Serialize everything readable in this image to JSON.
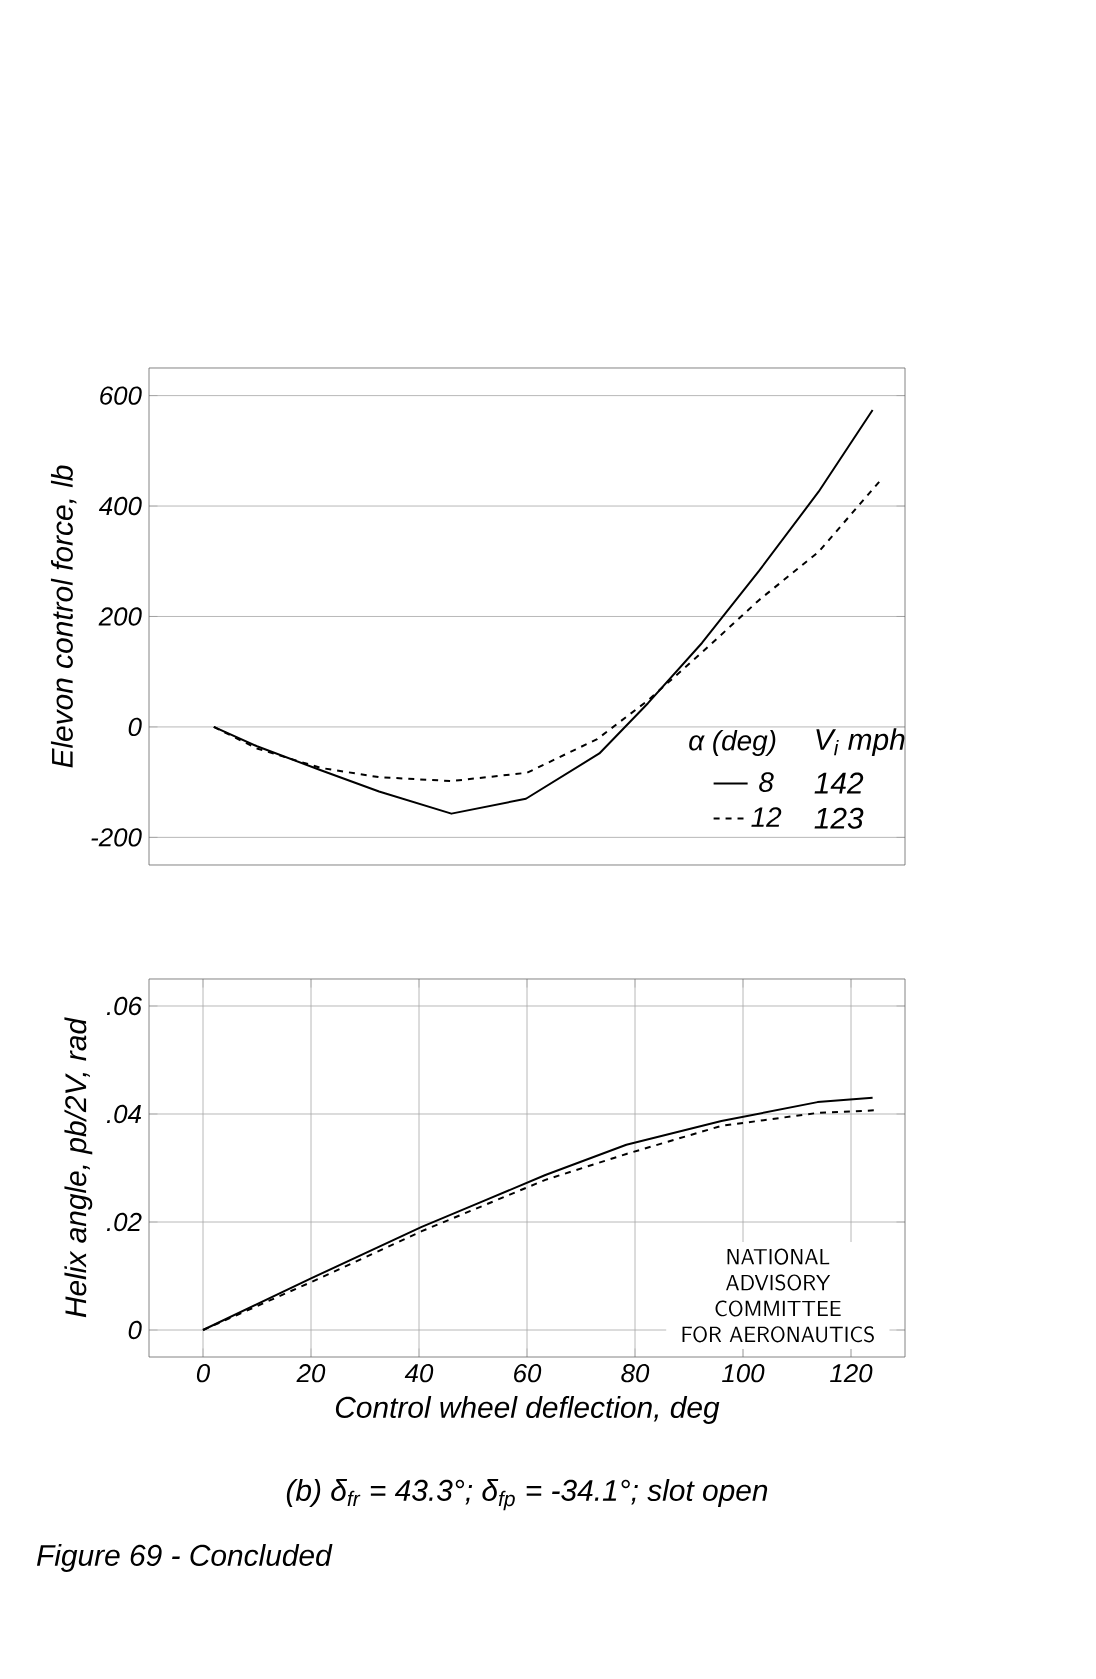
{
  "chart_data": [
    {
      "type": "line",
      "ylabel": "Elevon control force, lb",
      "legend_title": "α (deg)",
      "xlim": [
        -10,
        130
      ],
      "ylim": [
        -250,
        650
      ],
      "yticks": [
        -200,
        0,
        200,
        400,
        600
      ],
      "tick_labels": "y",
      "grid": true,
      "legend": "bottom right",
      "series": [
        {
          "name": "8",
          "color": "#000000",
          "line_style": "solid",
          "x": [
            2,
            10,
            21.7,
            32.6,
            46,
            59.8,
            73.4,
            82.4,
            92.4,
            103,
            114,
            124
          ],
          "values": [
            0,
            -35,
            -78,
            -117,
            -157,
            -130,
            -48,
            43,
            152,
            283,
            426,
            574
          ]
        },
        {
          "name": "12",
          "color": "#000000",
          "line_style": "dashed",
          "x": [
            2,
            10,
            21.7,
            32.6,
            46,
            60,
            73,
            82.4,
            92.4,
            103,
            114,
            125.4
          ],
          "values": [
            0,
            -39,
            -74,
            -91,
            -98,
            -83,
            -22,
            48,
            135,
            230,
            317,
            446
          ]
        }
      ],
      "annotations": [
        "V$_{i}$ mph",
        "142",
        "123"
      ]
    },
    {
      "type": "line",
      "ylabel": "Helix angle, pb/2V, rad",
      "xlabel": "Control wheel deflection, deg",
      "xlim": [
        -10,
        130
      ],
      "ylim": [
        -0.005,
        0.065
      ],
      "xticks": [
        0,
        20,
        40,
        60,
        80,
        100,
        120
      ],
      "yticks": [
        {
          "value": 0,
          "label": "0"
        },
        {
          "value": 0.02,
          "label": ".02"
        },
        {
          "value": 0.04,
          "label": ".04"
        },
        {
          "value": 0.06,
          "label": ".06"
        }
      ],
      "grid": true,
      "series": [
        {
          "color": "#000000",
          "line_style": "solid",
          "x": [
            0,
            20.1,
            40.5,
            52,
            63.4,
            78.4,
            96,
            113.8,
            124
          ],
          "values": [
            0,
            0.0096,
            0.0191,
            0.0239,
            0.0287,
            0.0343,
            0.0387,
            0.0422,
            0.043
          ]
        },
        {
          "color": "#000000",
          "line_style": "dashed",
          "x": [
            0,
            20.1,
            40.5,
            63.4,
            78.4,
            96,
            113.8,
            124.8
          ],
          "values": [
            0,
            0.0089,
            0.0183,
            0.0278,
            0.0326,
            0.0378,
            0.0402,
            0.0407
          ]
        }
      ],
      "annotations": [
        "NATIONAL ADVISORY COMMITTEE FOR AERONAUTICS",
        "(b) δ$_{fr}$ = 43.3°; δ$_{fp}$ = -34.1°; slot open",
        "Figure 69 - Concluded"
      ]
    }
  ]
}
